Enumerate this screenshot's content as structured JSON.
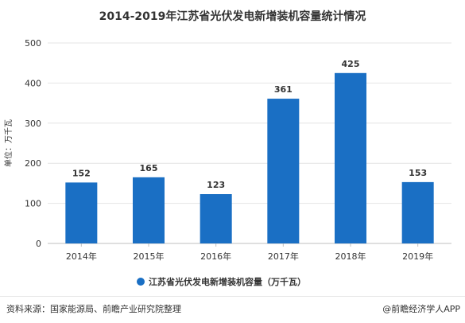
{
  "chart_data": {
    "type": "bar",
    "title": "2014-2019年江苏省光伏发电新增装机容量统计情况",
    "ylabel": "单位：万千瓦",
    "xlabel": "",
    "categories": [
      "2014年",
      "2015年",
      "2016年",
      "2017年",
      "2018年",
      "2019年"
    ],
    "series": [
      {
        "name": "江苏省光伏发电新增装机容量（万千瓦）",
        "values": [
          152,
          165,
          123,
          361,
          425,
          153
        ]
      }
    ],
    "ylim": [
      0,
      500
    ],
    "yticks": [
      0,
      100,
      200,
      300,
      400,
      500
    ],
    "grid": true,
    "legend_position": "bottom-center",
    "bar_color": "#1a6fc4"
  },
  "footer": {
    "source": "资料来源：国家能源局、前瞻产业研究院整理",
    "brand": "@前瞻经济学人APP"
  }
}
